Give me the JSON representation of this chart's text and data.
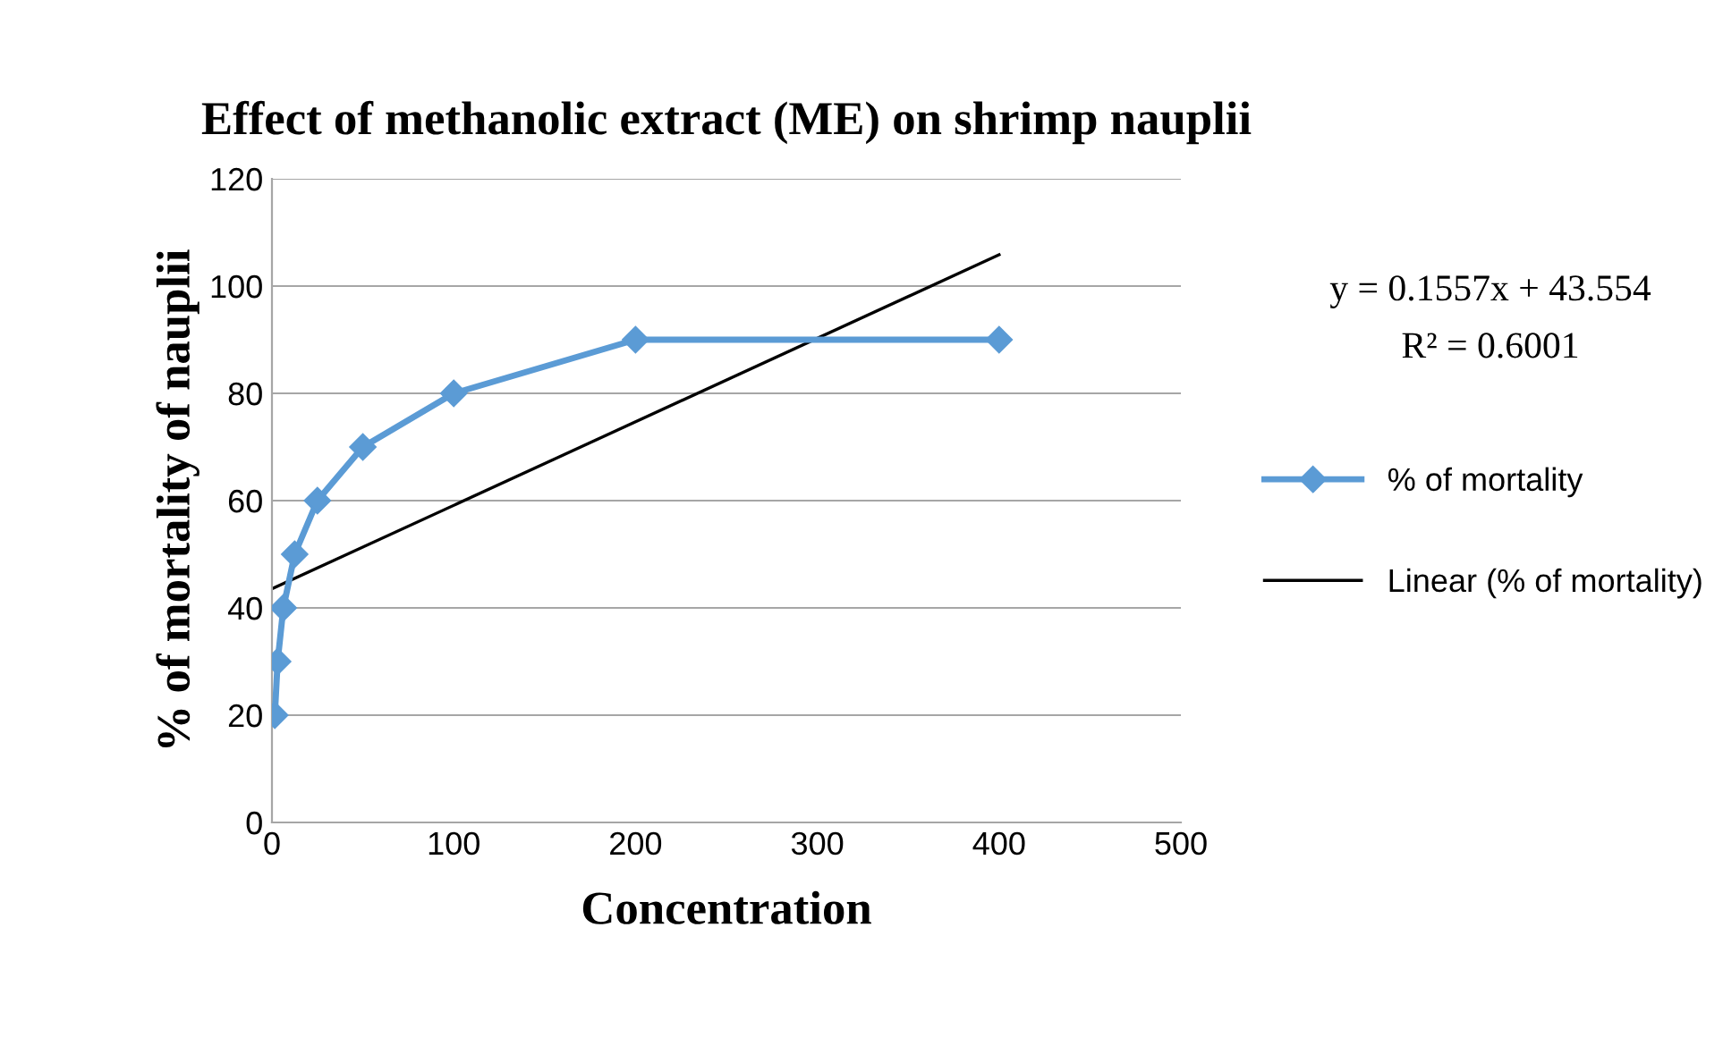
{
  "chart_data": {
    "type": "line",
    "title": "Effect of methanolic extract (ME) on shrimp nauplii",
    "xlabel": "Concentration",
    "ylabel": "% of mortality of nauplii",
    "series": [
      {
        "name": "% of mortality",
        "color": "#5b9bd5",
        "x": [
          1.5625,
          3.125,
          6.25,
          12.5,
          25,
          50,
          100,
          200,
          400
        ],
        "values": [
          20,
          30,
          40,
          50,
          60,
          70,
          80,
          90,
          90
        ],
        "marker": "diamond"
      },
      {
        "name": "Linear (% of mortality)",
        "color": "#000000",
        "x": [
          0,
          400
        ],
        "values": [
          43.554,
          105.83
        ],
        "marker": "none"
      }
    ],
    "annotations": [
      "y = 0.1557x + 43.554",
      "R² = 0.6001"
    ],
    "xlim": [
      0,
      500
    ],
    "xticks": [
      0,
      100,
      200,
      300,
      400,
      500
    ],
    "ylim": [
      0,
      120
    ],
    "yticks": [
      0,
      20,
      40,
      60,
      80,
      100,
      120
    ],
    "grid": "y",
    "legend": "right",
    "line_style": "solid"
  }
}
